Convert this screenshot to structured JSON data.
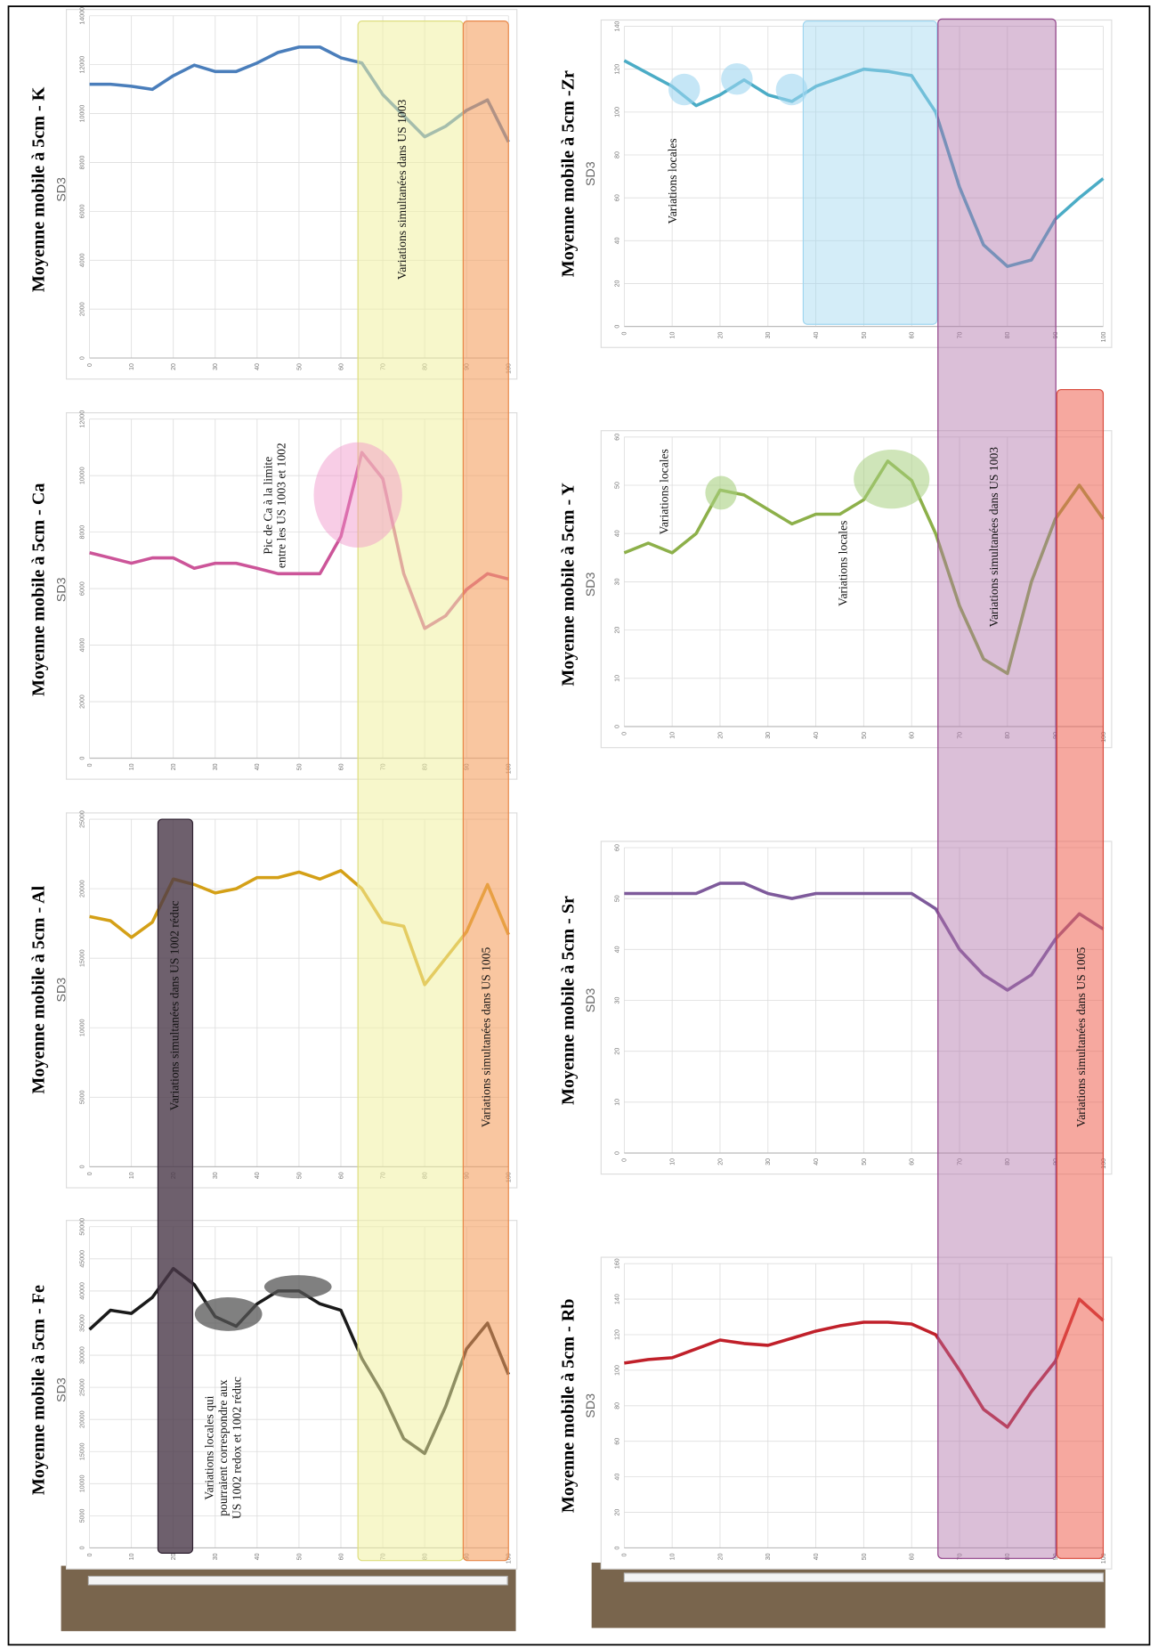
{
  "chart_data": [
    {
      "type": "line",
      "title": "Moyenne mobile à 5cm - Fe",
      "subtitle": "SD3",
      "color": "#1a1a1a",
      "x": [
        0,
        5,
        10,
        15,
        20,
        25,
        30,
        35,
        40,
        45,
        50,
        55,
        60,
        65,
        70,
        75,
        80,
        85,
        90,
        95,
        100
      ],
      "values": [
        34000,
        37000,
        36500,
        39000,
        43500,
        41000,
        36000,
        34500,
        38000,
        40000,
        40000,
        38000,
        37000,
        29500,
        24000,
        17000,
        14700,
        22000,
        31000,
        35000,
        27000
      ],
      "xlim": [
        0,
        100
      ],
      "xticks": [
        0,
        10,
        20,
        30,
        40,
        50,
        60,
        70,
        80,
        90,
        100
      ],
      "ylim": [
        0,
        50000
      ],
      "yticks": [
        0,
        5000,
        10000,
        15000,
        20000,
        25000,
        30000,
        35000,
        40000,
        45000,
        50000
      ],
      "grid": true
    },
    {
      "type": "line",
      "title": "Moyenne mobile à 5cm - Al",
      "subtitle": "SD3",
      "color": "#d4a017",
      "x": [
        0,
        5,
        10,
        15,
        20,
        25,
        30,
        35,
        40,
        45,
        50,
        55,
        60,
        65,
        70,
        75,
        80,
        85,
        90,
        95,
        100
      ],
      "values": [
        18000,
        17700,
        16500,
        17600,
        20700,
        20300,
        19700,
        20000,
        20800,
        20800,
        21200,
        20700,
        21300,
        20000,
        17600,
        17300,
        13100,
        15000,
        16900,
        20300,
        16700
      ],
      "xlim": [
        0,
        100
      ],
      "xticks": [
        0,
        10,
        20,
        30,
        40,
        50,
        60,
        70,
        80,
        90,
        100
      ],
      "ylim": [
        0,
        25000
      ],
      "yticks": [
        0,
        5000,
        10000,
        15000,
        20000,
        25000
      ],
      "grid": true
    },
    {
      "type": "line",
      "title": "Moyenne mobile à 5cm - Ca",
      "subtitle": "SD3",
      "color": "#cc5599",
      "x": [
        0,
        5,
        10,
        15,
        20,
        25,
        30,
        35,
        40,
        45,
        50,
        55,
        60,
        65,
        70,
        75,
        80,
        85,
        90,
        95,
        100
      ],
      "values": [
        7270,
        7090,
        6900,
        7090,
        7090,
        6720,
        6900,
        6900,
        6720,
        6530,
        6530,
        6530,
        7840,
        10820,
        9890,
        6530,
        4590,
        5040,
        5970,
        6530,
        6340
      ],
      "xlim": [
        0,
        100
      ],
      "xticks": [
        0,
        10,
        20,
        30,
        40,
        50,
        60,
        70,
        80,
        90,
        100
      ],
      "ylim": [
        0,
        12000
      ],
      "yticks": [
        0,
        2000,
        4000,
        6000,
        8000,
        10000,
        12000
      ],
      "grid": true
    },
    {
      "type": "line",
      "title": "Moyenne mobile à 5cm - K",
      "subtitle": "SD3",
      "color": "#4a7ebb",
      "x": [
        0,
        5,
        10,
        15,
        20,
        25,
        30,
        35,
        40,
        45,
        50,
        55,
        60,
        65,
        70,
        75,
        80,
        85,
        90,
        95,
        100
      ],
      "values": [
        11200,
        11200,
        11120,
        10990,
        11550,
        11980,
        11720,
        11720,
        12070,
        12500,
        12720,
        12720,
        12280,
        12070,
        10780,
        9910,
        9050,
        9480,
        10130,
        10560,
        8840
      ],
      "xlim": [
        0,
        100
      ],
      "xticks": [
        0,
        10,
        20,
        30,
        40,
        50,
        60,
        70,
        80,
        90,
        100
      ],
      "ylim": [
        0,
        14000
      ],
      "yticks": [
        0,
        2000,
        4000,
        6000,
        8000,
        10000,
        12000,
        14000
      ],
      "grid": true
    },
    {
      "type": "line",
      "title": "Moyenne mobile à 5cm - Rb",
      "subtitle": "SD3",
      "color": "#c0202a",
      "x": [
        0,
        5,
        10,
        15,
        20,
        25,
        30,
        35,
        40,
        45,
        50,
        55,
        60,
        65,
        70,
        75,
        80,
        85,
        90,
        95,
        100
      ],
      "values": [
        104,
        106,
        107,
        112,
        117,
        115,
        114,
        118,
        122,
        125,
        127,
        127,
        126,
        120,
        100,
        78,
        68,
        88,
        105,
        140,
        128
      ],
      "xlim": [
        0,
        100
      ],
      "xticks": [
        0,
        10,
        20,
        30,
        40,
        50,
        60,
        70,
        80,
        90,
        100
      ],
      "ylim": [
        0,
        160
      ],
      "yticks": [
        0,
        20,
        40,
        60,
        80,
        100,
        120,
        140,
        160
      ],
      "grid": true
    },
    {
      "type": "line",
      "title": "Moyenne mobile à 5cm - Sr",
      "subtitle": "SD3",
      "color": "#7e5a9b",
      "x": [
        0,
        5,
        10,
        15,
        20,
        25,
        30,
        35,
        40,
        45,
        50,
        55,
        60,
        65,
        70,
        75,
        80,
        85,
        90,
        95,
        100
      ],
      "values": [
        51,
        51,
        51,
        51,
        53,
        53,
        51,
        50,
        51,
        51,
        51,
        51,
        51,
        48,
        40,
        35,
        32,
        35,
        42,
        47,
        44
      ],
      "xlim": [
        0,
        100
      ],
      "xticks": [
        0,
        10,
        20,
        30,
        40,
        50,
        60,
        70,
        80,
        90,
        100
      ],
      "ylim": [
        0,
        60
      ],
      "yticks": [
        0,
        10,
        20,
        30,
        40,
        50,
        60
      ],
      "grid": true
    },
    {
      "type": "line",
      "title": "Moyenne mobile à 5cm - Y",
      "subtitle": "SD3",
      "color": "#8db04a",
      "x": [
        0,
        5,
        10,
        15,
        20,
        25,
        30,
        35,
        40,
        45,
        50,
        55,
        60,
        65,
        70,
        75,
        80,
        85,
        90,
        95,
        100
      ],
      "values": [
        36,
        38,
        36,
        40,
        49,
        48,
        45,
        42,
        44,
        44,
        47,
        55,
        51,
        40,
        25,
        14,
        11,
        30,
        43,
        50,
        43
      ],
      "xlim": [
        0,
        100
      ],
      "xticks": [
        0,
        10,
        20,
        30,
        40,
        50,
        60,
        70,
        80,
        90,
        100
      ],
      "ylim": [
        0,
        60
      ],
      "yticks": [
        0,
        10,
        20,
        30,
        40,
        50,
        60
      ],
      "grid": true
    },
    {
      "type": "line",
      "title": "Moyenne mobile à 5cm -Zr",
      "subtitle": "SD3",
      "color": "#4bacc6",
      "x": [
        0,
        5,
        10,
        15,
        20,
        25,
        30,
        35,
        40,
        45,
        50,
        55,
        60,
        65,
        70,
        75,
        80,
        85,
        90,
        95,
        100
      ],
      "values": [
        124,
        118,
        112,
        103,
        108,
        115,
        108,
        105,
        112,
        116,
        120,
        119,
        117,
        100,
        65,
        38,
        28,
        31,
        50,
        60,
        69
      ],
      "xlim": [
        0,
        100
      ],
      "xticks": [
        0,
        10,
        20,
        30,
        40,
        50,
        60,
        70,
        80,
        90,
        100
      ],
      "ylim": [
        0,
        140
      ],
      "yticks": [
        0,
        20,
        40,
        60,
        80,
        100,
        120,
        140
      ],
      "grid": true
    }
  ],
  "annotations": [
    [
      "Variations simultanées dans US 1003"
    ],
    [
      "Variations simultanées dans US 1005"
    ],
    [
      "Variations simultanées dans US 1002 réduc"
    ],
    [
      "Pic de Ca à la limite",
      "entre les US 1003 et 1002"
    ],
    [
      "Variations locales qui",
      "pourraient correspondre  aux",
      "US 1002 redox et 1002 réduc"
    ],
    [
      "Variations locales"
    ],
    [
      "Variations locales"
    ],
    [
      "Variations locales"
    ],
    [
      "Variations simultanées dans US 1003"
    ],
    [
      "Variations simultanées dans US 1005"
    ]
  ]
}
